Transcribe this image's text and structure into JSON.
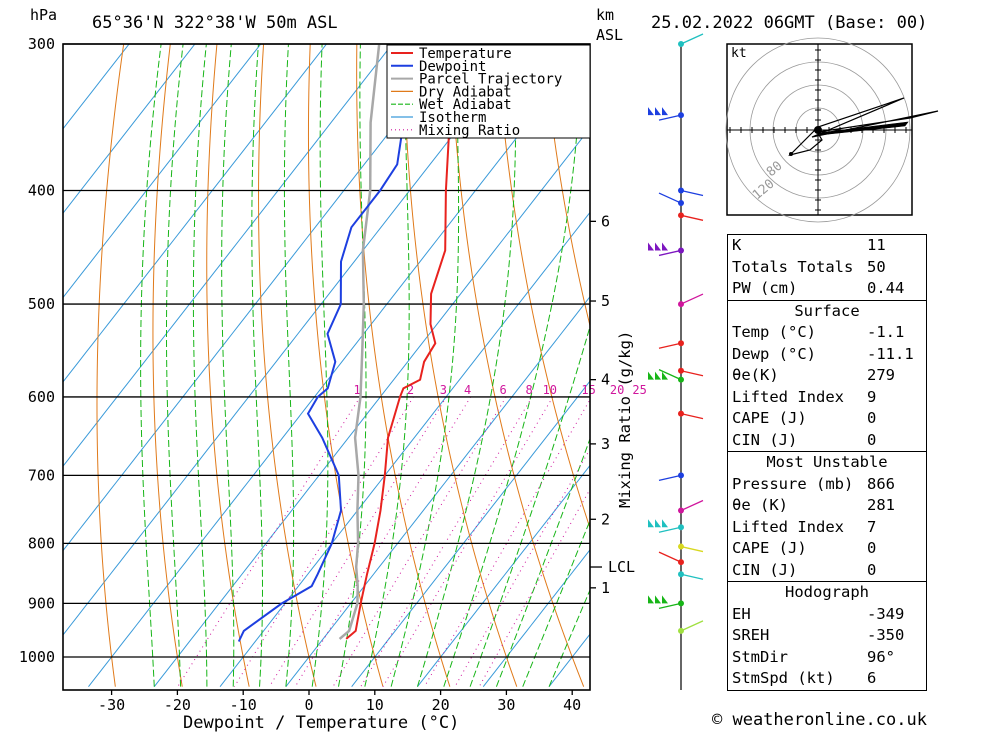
{
  "header": {
    "pressure_unit": "hPa",
    "location": "65°36'N  322°38'W  50m  ASL",
    "height_unit_1": "km",
    "height_unit_2": "ASL",
    "timestamp": "25.02.2022  06GMT  (Base: 00)"
  },
  "chart_data": {
    "type": "line",
    "title": "65°36'N  322°38'W  50m  ASL",
    "xlabel": "Dewpoint / Temperature (°C)",
    "ylabel": "hPa",
    "x_ticks": [
      -30,
      -20,
      -10,
      0,
      10,
      20,
      30,
      40
    ],
    "y_ticks": [
      300,
      400,
      500,
      600,
      700,
      800,
      900,
      1000
    ],
    "km_ticks": [
      {
        "label": "6",
        "p": 425
      },
      {
        "label": "5",
        "p": 497
      },
      {
        "label": "4",
        "p": 580
      },
      {
        "label": "3",
        "p": 658
      },
      {
        "label": "2",
        "p": 763
      },
      {
        "label": "1",
        "p": 873
      }
    ],
    "lcl": {
      "label": "LCL",
      "p": 838
    },
    "mixing_ratio_label": "Mixing Ratio (g/kg)",
    "mixing_ratio_values": [
      "1",
      "2",
      "3",
      "4",
      "6",
      "8",
      "10",
      "15",
      "20",
      "25"
    ],
    "legend": [
      "Temperature",
      "Dewpoint",
      "Parcel Trajectory",
      "Dry Adiabat",
      "Wet Adiabat",
      "Isotherm",
      "Mixing Ratio"
    ],
    "colors": {
      "temperature": "#e8221e",
      "dewpoint": "#1d3fe0",
      "parcel": "#a8a8a8",
      "dry_adiabat": "#e07a1a",
      "wet_adiabat": "#17b517",
      "isotherm": "#3a9ad9",
      "mixing_ratio": "#d0169d"
    },
    "series": [
      {
        "name": "Temperature",
        "points": [
          [
            300,
            -49
          ],
          [
            350,
            -42
          ],
          [
            400,
            -34.5
          ],
          [
            450,
            -27.5
          ],
          [
            490,
            -24.5
          ],
          [
            520,
            -21
          ],
          [
            540,
            -18
          ],
          [
            560,
            -17.5
          ],
          [
            580,
            -16
          ],
          [
            590,
            -17.5
          ],
          [
            600,
            -17
          ],
          [
            650,
            -14
          ],
          [
            700,
            -10
          ],
          [
            750,
            -6.5
          ],
          [
            800,
            -3.5
          ],
          [
            850,
            -1
          ],
          [
            900,
            1.5
          ],
          [
            950,
            4
          ],
          [
            965,
            3.5
          ]
        ]
      },
      {
        "name": "Dewpoint",
        "points": [
          [
            300,
            -55
          ],
          [
            350,
            -49
          ],
          [
            380,
            -45
          ],
          [
            400,
            -44.5
          ],
          [
            430,
            -44.5
          ],
          [
            460,
            -42
          ],
          [
            500,
            -37
          ],
          [
            530,
            -35.5
          ],
          [
            560,
            -31
          ],
          [
            590,
            -29
          ],
          [
            600,
            -29.5
          ],
          [
            620,
            -29
          ],
          [
            650,
            -24
          ],
          [
            700,
            -17
          ],
          [
            750,
            -12.5
          ],
          [
            800,
            -10
          ],
          [
            850,
            -8.5
          ],
          [
            870,
            -8
          ],
          [
            900,
            -10.5
          ],
          [
            950,
            -13
          ],
          [
            970,
            -12.5
          ]
        ]
      },
      {
        "name": "Parcel Trajectory",
        "points": [
          [
            300,
            -62
          ],
          [
            350,
            -54
          ],
          [
            400,
            -46
          ],
          [
            450,
            -40
          ],
          [
            500,
            -33.5
          ],
          [
            550,
            -28
          ],
          [
            600,
            -23
          ],
          [
            650,
            -19
          ],
          [
            700,
            -14
          ],
          [
            750,
            -10
          ],
          [
            800,
            -6
          ],
          [
            838,
            -3.5
          ],
          [
            870,
            -1
          ],
          [
            900,
            1
          ],
          [
            950,
            3
          ],
          [
            965,
            2.5
          ]
        ]
      }
    ],
    "wind_profile_pressures": [
      300,
      345,
      400,
      410,
      420,
      450,
      500,
      540,
      570,
      580,
      620,
      700,
      750,
      775,
      805,
      830,
      850,
      900,
      950
    ],
    "hodograph": {
      "unit": "kt",
      "ring_labels": [
        "80",
        "120"
      ]
    }
  },
  "indices": {
    "rows": [
      {
        "label": "K",
        "value": "11"
      },
      {
        "label": "Totals Totals",
        "value": "50"
      },
      {
        "label": "PW (cm)",
        "value": "0.44"
      }
    ]
  },
  "surface": {
    "title": "Surface",
    "rows": [
      {
        "label": "Temp (°C)",
        "value": "-1.1"
      },
      {
        "label": "Dewp (°C)",
        "value": "-11.1"
      },
      {
        "label": "θe(K)",
        "value": "279"
      },
      {
        "label": "Lifted Index",
        "value": "9"
      },
      {
        "label": "CAPE (J)",
        "value": "0"
      },
      {
        "label": "CIN (J)",
        "value": "0"
      }
    ]
  },
  "most_unstable": {
    "title": "Most Unstable",
    "rows": [
      {
        "label": "Pressure (mb)",
        "value": "866"
      },
      {
        "label": "θe (K)",
        "value": "281"
      },
      {
        "label": "Lifted Index",
        "value": "7"
      },
      {
        "label": "CAPE (J)",
        "value": "0"
      },
      {
        "label": "CIN (J)",
        "value": "0"
      }
    ]
  },
  "hodograph_stats": {
    "title": "Hodograph",
    "rows": [
      {
        "label": "EH",
        "value": "-349"
      },
      {
        "label": "SREH",
        "value": "-350"
      },
      {
        "label": "StmDir",
        "value": "96°"
      },
      {
        "label": "StmSpd (kt)",
        "value": "6"
      }
    ]
  },
  "copyright": "© weatheronline.co.uk"
}
